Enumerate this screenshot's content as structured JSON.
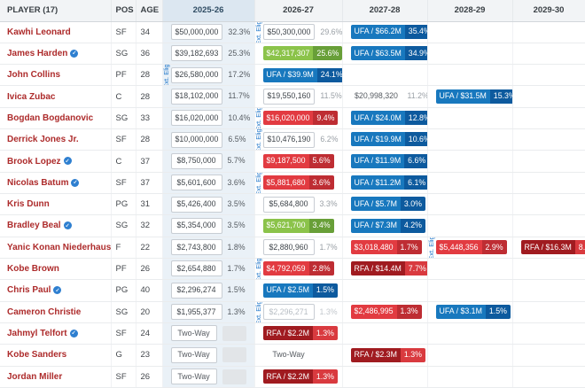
{
  "labels": {
    "ext_elig": "Ext. Elig."
  },
  "colors": {
    "ufa_blue": "#1878be",
    "ufa_blue_dark": "#0d5a9e",
    "option_green": "#8bc34a",
    "option_green_dark": "#689f38",
    "nonguaranteed_red": "#e23b41",
    "nonguaranteed_red_dark": "#be2d33",
    "rfa_maroon": "#a01b20",
    "player_link_red": "#ad2b2b",
    "current_season_tint": "#eaf1f7"
  },
  "header": {
    "columns": [
      {
        "label": "PLAYER (17)"
      },
      {
        "label": "POS"
      },
      {
        "label": "AGE"
      },
      {
        "label": "2025-26",
        "current": true
      },
      {
        "label": "2026-27"
      },
      {
        "label": "2027-28"
      },
      {
        "label": "2028-29"
      },
      {
        "label": "2029-30"
      }
    ]
  },
  "rows": [
    {
      "player": "Kawhi Leonard",
      "pos": "SF",
      "age": "34",
      "icon": false,
      "seasons": [
        {
          "value": "$50,000,000",
          "pct": "32.3%",
          "style": "plain"
        },
        {
          "value": "$50,300,000",
          "pct": "29.6%",
          "style": "plain",
          "ext": true
        },
        {
          "value": "UFA / $66.2M",
          "pct": "35.4%",
          "style": "ufa"
        },
        null,
        null
      ]
    },
    {
      "player": "James Harden",
      "pos": "SG",
      "age": "36",
      "icon": true,
      "seasons": [
        {
          "value": "$39,182,693",
          "pct": "25.3%",
          "style": "plain"
        },
        {
          "value": "$42,317,307",
          "pct": "25.6%",
          "style": "green"
        },
        {
          "value": "UFA / $63.5M",
          "pct": "34.9%",
          "style": "ufa"
        },
        null,
        null
      ]
    },
    {
      "player": "John Collins",
      "pos": "PF",
      "age": "28",
      "icon": false,
      "seasons": [
        {
          "value": "$26,580,000",
          "pct": "17.2%",
          "style": "plain",
          "ext": true
        },
        {
          "value": "UFA / $39.9M",
          "pct": "24.1%",
          "style": "ufa"
        },
        null,
        null,
        null
      ]
    },
    {
      "player": "Ivica Zubac",
      "pos": "C",
      "age": "28",
      "icon": false,
      "seasons": [
        {
          "value": "$18,102,000",
          "pct": "11.7%",
          "style": "plain"
        },
        {
          "value": "$19,550,160",
          "pct": "11.5%",
          "style": "plain"
        },
        {
          "value": "$20,998,320",
          "pct": "11.2%",
          "style": "text"
        },
        {
          "value": "UFA / $31.5M",
          "pct": "15.3%",
          "style": "ufa"
        },
        null
      ]
    },
    {
      "player": "Bogdan Bogdanovic",
      "pos": "SG",
      "age": "33",
      "icon": false,
      "seasons": [
        {
          "value": "$16,020,000",
          "pct": "10.4%",
          "style": "plain"
        },
        {
          "value": "$16,020,000",
          "pct": "9.4%",
          "style": "red",
          "ext": true
        },
        {
          "value": "UFA / $24.0M",
          "pct": "12.8%",
          "style": "ufa"
        },
        null,
        null
      ]
    },
    {
      "player": "Derrick Jones Jr.",
      "pos": "SF",
      "age": "28",
      "icon": false,
      "seasons": [
        {
          "value": "$10,000,000",
          "pct": "6.5%",
          "style": "plain"
        },
        {
          "value": "$10,476,190",
          "pct": "6.2%",
          "style": "plain",
          "ext": true
        },
        {
          "value": "UFA / $19.9M",
          "pct": "10.6%",
          "style": "ufa"
        },
        null,
        null
      ]
    },
    {
      "player": "Brook Lopez",
      "pos": "C",
      "age": "37",
      "icon": true,
      "seasons": [
        {
          "value": "$8,750,000",
          "pct": "5.7%",
          "style": "plain"
        },
        {
          "value": "$9,187,500",
          "pct": "5.6%",
          "style": "red"
        },
        {
          "value": "UFA / $11.9M",
          "pct": "6.6%",
          "style": "ufa"
        },
        null,
        null
      ]
    },
    {
      "player": "Nicolas Batum",
      "pos": "SF",
      "age": "37",
      "icon": true,
      "seasons": [
        {
          "value": "$5,601,600",
          "pct": "3.6%",
          "style": "plain"
        },
        {
          "value": "$5,881,680",
          "pct": "3.6%",
          "style": "red",
          "ext": true
        },
        {
          "value": "UFA / $11.2M",
          "pct": "6.1%",
          "style": "ufa"
        },
        null,
        null
      ]
    },
    {
      "player": "Kris Dunn",
      "pos": "PG",
      "age": "31",
      "icon": false,
      "seasons": [
        {
          "value": "$5,426,400",
          "pct": "3.5%",
          "style": "plain"
        },
        {
          "value": "$5,684,800",
          "pct": "3.3%",
          "style": "plain"
        },
        {
          "value": "UFA / $5.7M",
          "pct": "3.0%",
          "style": "ufa"
        },
        null,
        null
      ]
    },
    {
      "player": "Bradley Beal",
      "pos": "SG",
      "age": "32",
      "icon": true,
      "seasons": [
        {
          "value": "$5,354,000",
          "pct": "3.5%",
          "style": "plain"
        },
        {
          "value": "$5,621,700",
          "pct": "3.4%",
          "style": "green"
        },
        {
          "value": "UFA / $7.3M",
          "pct": "4.2%",
          "style": "ufa"
        },
        null,
        null
      ]
    },
    {
      "player": "Yanic Konan Niederhauser",
      "pos": "F",
      "age": "22",
      "icon": false,
      "seasons": [
        {
          "value": "$2,743,800",
          "pct": "1.8%",
          "style": "plain"
        },
        {
          "value": "$2,880,960",
          "pct": "1.7%",
          "style": "plain"
        },
        {
          "value": "$3,018,480",
          "pct": "1.7%",
          "style": "red"
        },
        {
          "value": "$5,448,356",
          "pct": "2.9%",
          "style": "red",
          "ext": true
        },
        {
          "value": "RFA / $16.3M",
          "pct": "8.1%",
          "style": "rfa"
        }
      ]
    },
    {
      "player": "Kobe Brown",
      "pos": "PF",
      "age": "26",
      "icon": false,
      "seasons": [
        {
          "value": "$2,654,880",
          "pct": "1.7%",
          "style": "plain"
        },
        {
          "value": "$4,792,059",
          "pct": "2.8%",
          "style": "red",
          "ext": true
        },
        {
          "value": "RFA / $14.4M",
          "pct": "7.7%",
          "style": "rfa"
        },
        null,
        null
      ]
    },
    {
      "player": "Chris Paul",
      "pos": "PG",
      "age": "40",
      "icon": true,
      "seasons": [
        {
          "value": "$2,296,274",
          "pct": "1.5%",
          "style": "plain"
        },
        {
          "value": "UFA / $2.5M",
          "pct": "1.5%",
          "style": "ufa"
        },
        null,
        null,
        null
      ]
    },
    {
      "player": "Cameron Christie",
      "pos": "SG",
      "age": "20",
      "icon": false,
      "seasons": [
        {
          "value": "$1,955,377",
          "pct": "1.3%",
          "style": "plain"
        },
        {
          "value": "$2,296,271",
          "pct": "1.3%",
          "style": "muted",
          "ext": true
        },
        {
          "value": "$2,486,995",
          "pct": "1.3%",
          "style": "red"
        },
        {
          "value": "UFA / $3.1M",
          "pct": "1.5%",
          "style": "ufa"
        },
        null
      ]
    },
    {
      "player": "Jahmyl Telfort",
      "pos": "SF",
      "age": "24",
      "icon": true,
      "seasons": [
        {
          "value": "Two-Way",
          "style": "twoway",
          "pct_empty": true
        },
        {
          "value": "RFA / $2.2M",
          "pct": "1.3%",
          "style": "rfa"
        },
        null,
        null,
        null
      ]
    },
    {
      "player": "Kobe Sanders",
      "pos": "G",
      "age": "23",
      "icon": false,
      "seasons": [
        {
          "value": "Two-Way",
          "style": "twoway",
          "pct_empty": true
        },
        {
          "value": "Two-Way",
          "style": "twoway-plain"
        },
        {
          "value": "RFA / $2.3M",
          "pct": "1.3%",
          "style": "rfa"
        },
        null,
        null
      ]
    },
    {
      "player": "Jordan Miller",
      "pos": "SF",
      "age": "26",
      "icon": false,
      "seasons": [
        {
          "value": "Two-Way",
          "style": "twoway",
          "pct_empty": true
        },
        {
          "value": "RFA / $2.2M",
          "pct": "1.3%",
          "style": "rfa"
        },
        null,
        null,
        null
      ]
    }
  ]
}
